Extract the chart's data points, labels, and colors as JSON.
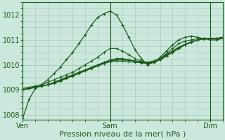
{
  "title": "Pression niveau de la mer( hPa )",
  "bg_color": "#cce8dc",
  "grid_color": "#aaccbc",
  "line_color": "#1a5c1a",
  "ylim": [
    1007.8,
    1012.5
  ],
  "yticks": [
    1008,
    1009,
    1010,
    1011,
    1012
  ],
  "xlim": [
    0,
    96
  ],
  "xtick_positions": [
    0,
    42,
    90
  ],
  "xtick_labels": [
    "Ven",
    "Sam",
    "Dim"
  ],
  "vlines": [
    0,
    42,
    90
  ],
  "x_points": [
    0,
    3,
    6,
    9,
    12,
    15,
    18,
    21,
    24,
    27,
    30,
    33,
    36,
    39,
    42,
    45,
    48,
    51,
    54,
    57,
    60,
    63,
    66,
    69,
    72,
    75,
    78,
    81,
    84,
    87,
    90,
    93,
    96
  ],
  "series": [
    [
      1007.85,
      1008.6,
      1009.05,
      1009.2,
      1009.4,
      1009.65,
      1009.9,
      1010.2,
      1010.5,
      1010.85,
      1011.2,
      1011.6,
      1011.9,
      1012.05,
      1012.15,
      1012.0,
      1011.6,
      1011.1,
      1010.6,
      1010.25,
      1010.0,
      1010.1,
      1010.3,
      1010.55,
      1010.8,
      1011.0,
      1011.1,
      1011.15,
      1011.1,
      1011.05,
      1011.0,
      1011.0,
      1011.05
    ],
    [
      1009.05,
      1009.1,
      1009.15,
      1009.2,
      1009.3,
      1009.4,
      1009.5,
      1009.6,
      1009.7,
      1009.85,
      1010.0,
      1010.15,
      1010.3,
      1010.5,
      1010.65,
      1010.65,
      1010.55,
      1010.4,
      1010.25,
      1010.15,
      1010.05,
      1010.1,
      1010.25,
      1010.45,
      1010.65,
      1010.85,
      1010.95,
      1011.0,
      1011.05,
      1011.05,
      1011.05,
      1011.05,
      1011.1
    ],
    [
      1009.0,
      1009.05,
      1009.1,
      1009.15,
      1009.2,
      1009.3,
      1009.4,
      1009.5,
      1009.6,
      1009.7,
      1009.8,
      1009.9,
      1010.0,
      1010.1,
      1010.2,
      1010.25,
      1010.25,
      1010.2,
      1010.15,
      1010.1,
      1010.05,
      1010.1,
      1010.2,
      1010.35,
      1010.5,
      1010.65,
      1010.8,
      1010.9,
      1011.0,
      1011.05,
      1011.05,
      1011.05,
      1011.1
    ],
    [
      1009.0,
      1009.05,
      1009.1,
      1009.15,
      1009.2,
      1009.28,
      1009.38,
      1009.48,
      1009.58,
      1009.68,
      1009.78,
      1009.88,
      1009.98,
      1010.08,
      1010.15,
      1010.2,
      1010.2,
      1010.18,
      1010.15,
      1010.12,
      1010.1,
      1010.15,
      1010.25,
      1010.4,
      1010.55,
      1010.7,
      1010.82,
      1010.92,
      1011.0,
      1011.05,
      1011.05,
      1011.05,
      1011.1
    ],
    [
      1009.0,
      1009.05,
      1009.1,
      1009.15,
      1009.2,
      1009.25,
      1009.35,
      1009.45,
      1009.55,
      1009.65,
      1009.75,
      1009.85,
      1009.95,
      1010.05,
      1010.12,
      1010.15,
      1010.15,
      1010.12,
      1010.1,
      1010.08,
      1010.05,
      1010.1,
      1010.2,
      1010.35,
      1010.5,
      1010.65,
      1010.8,
      1010.9,
      1011.0,
      1011.04,
      1011.05,
      1011.05,
      1011.1
    ]
  ],
  "linewidths": [
    0.9,
    0.8,
    0.8,
    1.2,
    0.8
  ],
  "font_size_tick": 7,
  "font_size_label": 8
}
